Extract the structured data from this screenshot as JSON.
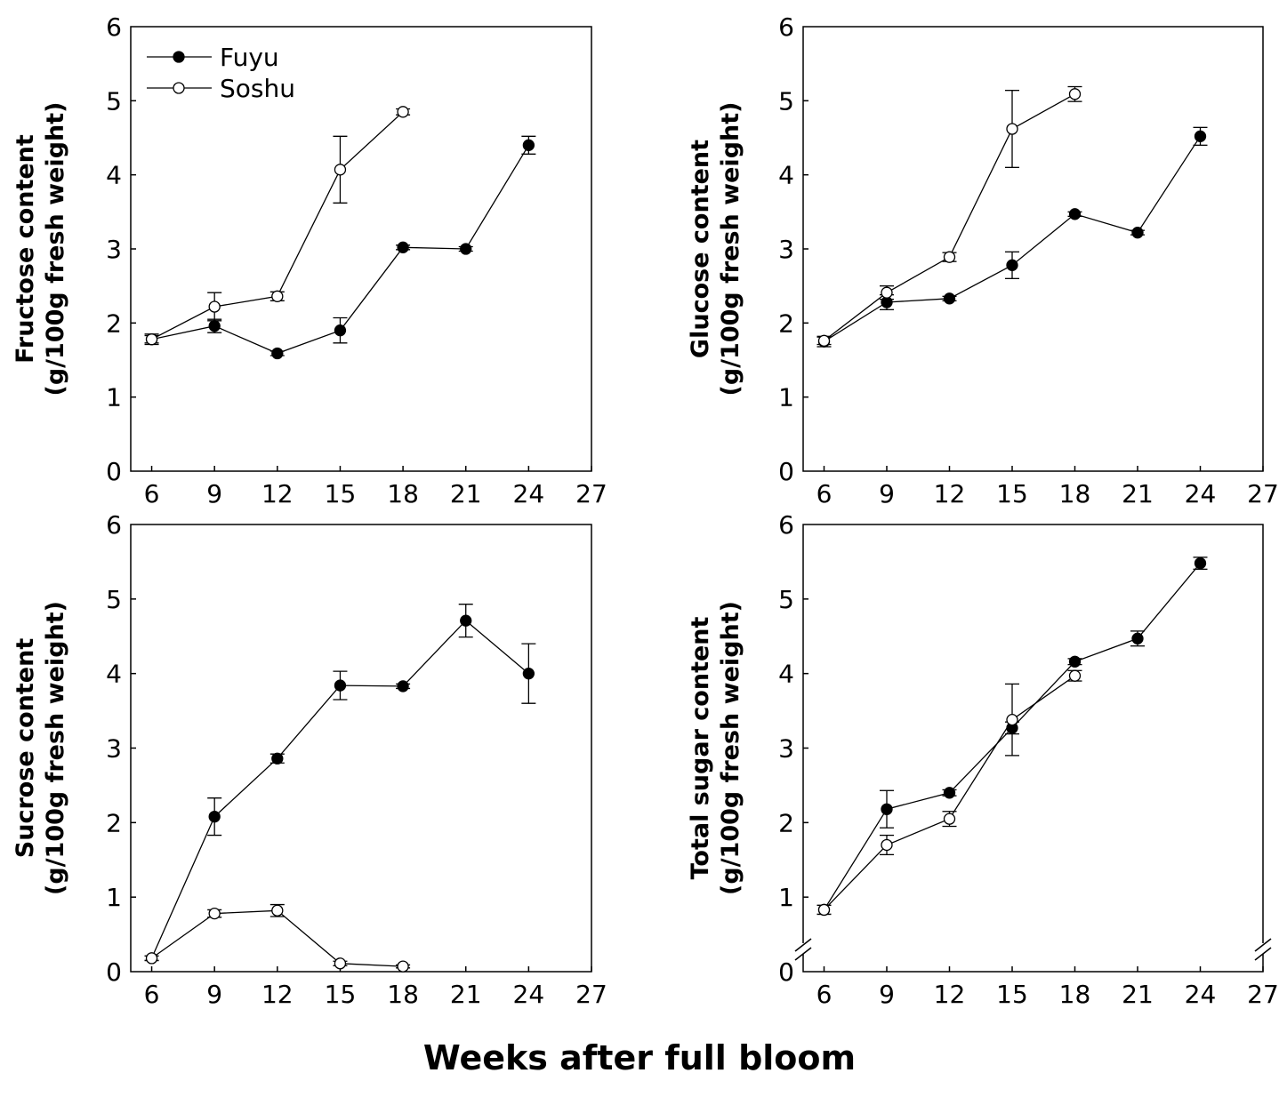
{
  "xlabel": "Weeks after full bloom",
  "legend": {
    "items": [
      {
        "name": "Fuyu",
        "marker": "filled"
      },
      {
        "name": "Soshu",
        "marker": "open"
      }
    ]
  },
  "colors": {
    "line": "#000000",
    "marker_fill": "#000000",
    "open_fill": "#ffffff"
  },
  "chart_data": [
    {
      "type": "line",
      "panel": "top-left",
      "ylabel": [
        "Fructose content",
        "(g/100g fresh weight)"
      ],
      "xlim": [
        5,
        27
      ],
      "ylim": [
        0,
        6
      ],
      "xticks": [
        6,
        9,
        12,
        15,
        18,
        21,
        24,
        27
      ],
      "yticks": [
        0,
        1,
        2,
        3,
        4,
        5,
        6
      ],
      "axis_break": false,
      "legend": "top-left",
      "series": [
        {
          "name": "Fuyu",
          "marker": "filled",
          "x": [
            6,
            9,
            12,
            15,
            18,
            21,
            24
          ],
          "y": [
            1.78,
            1.96,
            1.59,
            1.9,
            3.02,
            3.0,
            4.4
          ],
          "err": [
            0.07,
            0.09,
            0.03,
            0.17,
            0.03,
            0.03,
            0.12
          ]
        },
        {
          "name": "Soshu",
          "marker": "open",
          "x": [
            6,
            9,
            12,
            15,
            18
          ],
          "y": [
            1.78,
            2.22,
            2.36,
            4.07,
            4.85
          ],
          "err": [
            0.05,
            0.19,
            0.06,
            0.45,
            0.04
          ]
        }
      ]
    },
    {
      "type": "line",
      "panel": "top-right",
      "ylabel": [
        "Glucose content",
        "(g/100g fresh weight)"
      ],
      "xlim": [
        5,
        27
      ],
      "ylim": [
        0,
        6
      ],
      "xticks": [
        6,
        9,
        12,
        15,
        18,
        21,
        24,
        27
      ],
      "yticks": [
        0,
        1,
        2,
        3,
        4,
        5,
        6
      ],
      "axis_break": false,
      "series": [
        {
          "name": "Fuyu",
          "marker": "filled",
          "x": [
            6,
            9,
            12,
            15,
            18,
            21,
            24
          ],
          "y": [
            1.75,
            2.28,
            2.33,
            2.78,
            3.47,
            3.22,
            4.52
          ],
          "err": [
            0.07,
            0.1,
            0.03,
            0.18,
            0.03,
            0.03,
            0.12
          ]
        },
        {
          "name": "Soshu",
          "marker": "open",
          "x": [
            6,
            9,
            12,
            15,
            18
          ],
          "y": [
            1.76,
            2.41,
            2.89,
            4.62,
            5.09
          ],
          "err": [
            0.05,
            0.09,
            0.06,
            0.52,
            0.1
          ]
        }
      ]
    },
    {
      "type": "line",
      "panel": "bottom-left",
      "ylabel": [
        "Sucrose content",
        "(g/100g fresh weight)"
      ],
      "xlim": [
        5,
        27
      ],
      "ylim": [
        0,
        6
      ],
      "xticks": [
        6,
        9,
        12,
        15,
        18,
        21,
        24,
        27
      ],
      "yticks": [
        0,
        1,
        2,
        3,
        4,
        5,
        6
      ],
      "axis_break": false,
      "series": [
        {
          "name": "Fuyu",
          "marker": "filled",
          "x": [
            6,
            9,
            12,
            15,
            18,
            21,
            24
          ],
          "y": [
            0.18,
            2.08,
            2.86,
            3.84,
            3.83,
            4.71,
            4.0
          ],
          "err": [
            0.03,
            0.25,
            0.06,
            0.19,
            0.03,
            0.22,
            0.4
          ]
        },
        {
          "name": "Soshu",
          "marker": "open",
          "x": [
            6,
            9,
            12,
            15,
            18
          ],
          "y": [
            0.18,
            0.78,
            0.82,
            0.11,
            0.07
          ],
          "err": [
            0.03,
            0.05,
            0.08,
            0.03,
            0.02
          ]
        }
      ]
    },
    {
      "type": "line",
      "panel": "bottom-right",
      "ylabel": [
        "Total sugar content",
        "(g/100g fresh weight)"
      ],
      "xlim": [
        5,
        27
      ],
      "ylim": [
        0,
        6
      ],
      "xticks": [
        6,
        9,
        12,
        15,
        18,
        21,
        24,
        27
      ],
      "yticks": [
        0,
        1,
        2,
        3,
        4,
        5,
        6
      ],
      "axis_break": true,
      "series": [
        {
          "name": "Fuyu",
          "marker": "filled",
          "x": [
            6,
            9,
            12,
            15,
            18,
            21,
            24
          ],
          "y": [
            0.83,
            2.18,
            2.4,
            3.27,
            4.16,
            4.47,
            5.48
          ],
          "err": [
            0.06,
            0.25,
            0.04,
            0.08,
            0.04,
            0.1,
            0.08
          ]
        },
        {
          "name": "Soshu",
          "marker": "open",
          "x": [
            6,
            9,
            12,
            15,
            18
          ],
          "y": [
            0.83,
            1.7,
            2.05,
            3.38,
            3.97
          ],
          "err": [
            0.06,
            0.13,
            0.1,
            0.48,
            0.07
          ]
        }
      ]
    }
  ]
}
